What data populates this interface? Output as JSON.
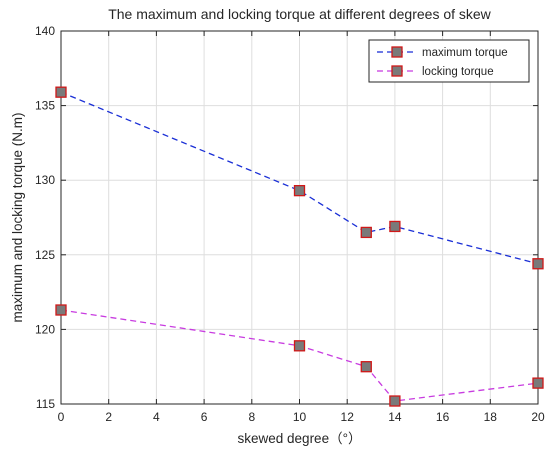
{
  "chart_data": {
    "type": "line",
    "title": "The maximum and locking torque at different degrees of skew",
    "xlabel": "skewed degree（°）",
    "ylabel": "maximum and locking torque (N.m)",
    "xlim": [
      0,
      20
    ],
    "ylim": [
      115,
      140
    ],
    "xticks": [
      0,
      2,
      4,
      6,
      8,
      10,
      12,
      14,
      16,
      18,
      20
    ],
    "yticks": [
      115,
      120,
      125,
      130,
      135,
      140
    ],
    "grid": true,
    "legend_position": "top-right",
    "x": [
      0,
      10,
      12.8,
      14,
      20
    ],
    "series": [
      {
        "name": "maximum torque",
        "values": [
          135.9,
          129.3,
          126.5,
          126.9,
          124.4
        ],
        "line_color": "#1a2fd6",
        "line_style": "dashed",
        "marker": "square",
        "marker_face": "#7a7a7a",
        "marker_edge": "#d01818"
      },
      {
        "name": "locking torque",
        "values": [
          121.3,
          118.9,
          117.5,
          115.2,
          116.4
        ],
        "line_color": "#c83ce0",
        "line_style": "dashed",
        "marker": "square",
        "marker_face": "#7a7a7a",
        "marker_edge": "#d01818"
      }
    ]
  }
}
